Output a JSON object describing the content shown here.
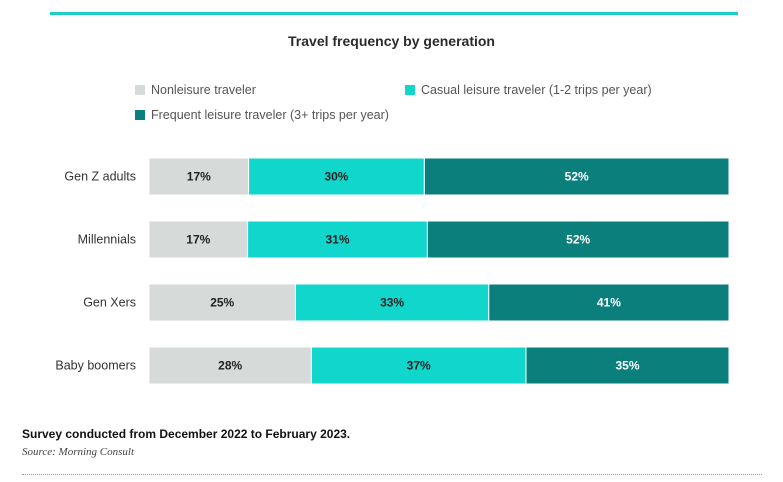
{
  "chart_data": {
    "type": "bar",
    "orientation": "horizontal",
    "stacked": true,
    "title": "Travel frequency by generation",
    "categories": [
      "Gen Z adults",
      "Millennials",
      "Gen Xers",
      "Baby boomers"
    ],
    "series": [
      {
        "name": "Nonleisure traveler",
        "color": "#d6dad9",
        "values": [
          17,
          17,
          25,
          28
        ],
        "labels": [
          "17%",
          "17%",
          "25%",
          "28%"
        ]
      },
      {
        "name": "Casual leisure traveler (1-2 trips per year)",
        "color": "#10d6cc",
        "values": [
          30,
          31,
          33,
          37
        ],
        "labels": [
          "30%",
          "31%",
          "33%",
          "37%"
        ]
      },
      {
        "name": "Frequent leisure traveler (3+ trips per year)",
        "color": "#0a7f7b",
        "values": [
          52,
          52,
          41,
          35
        ],
        "labels": [
          "52%",
          "52%",
          "41%",
          "35%"
        ]
      }
    ],
    "legend_position": "top",
    "grid": false
  },
  "footer": {
    "note": "Survey conducted from December 2022 to February 2023.",
    "source": "Source: Morning Consult"
  },
  "colors": {
    "accent_rule": "#1ccfc9"
  }
}
